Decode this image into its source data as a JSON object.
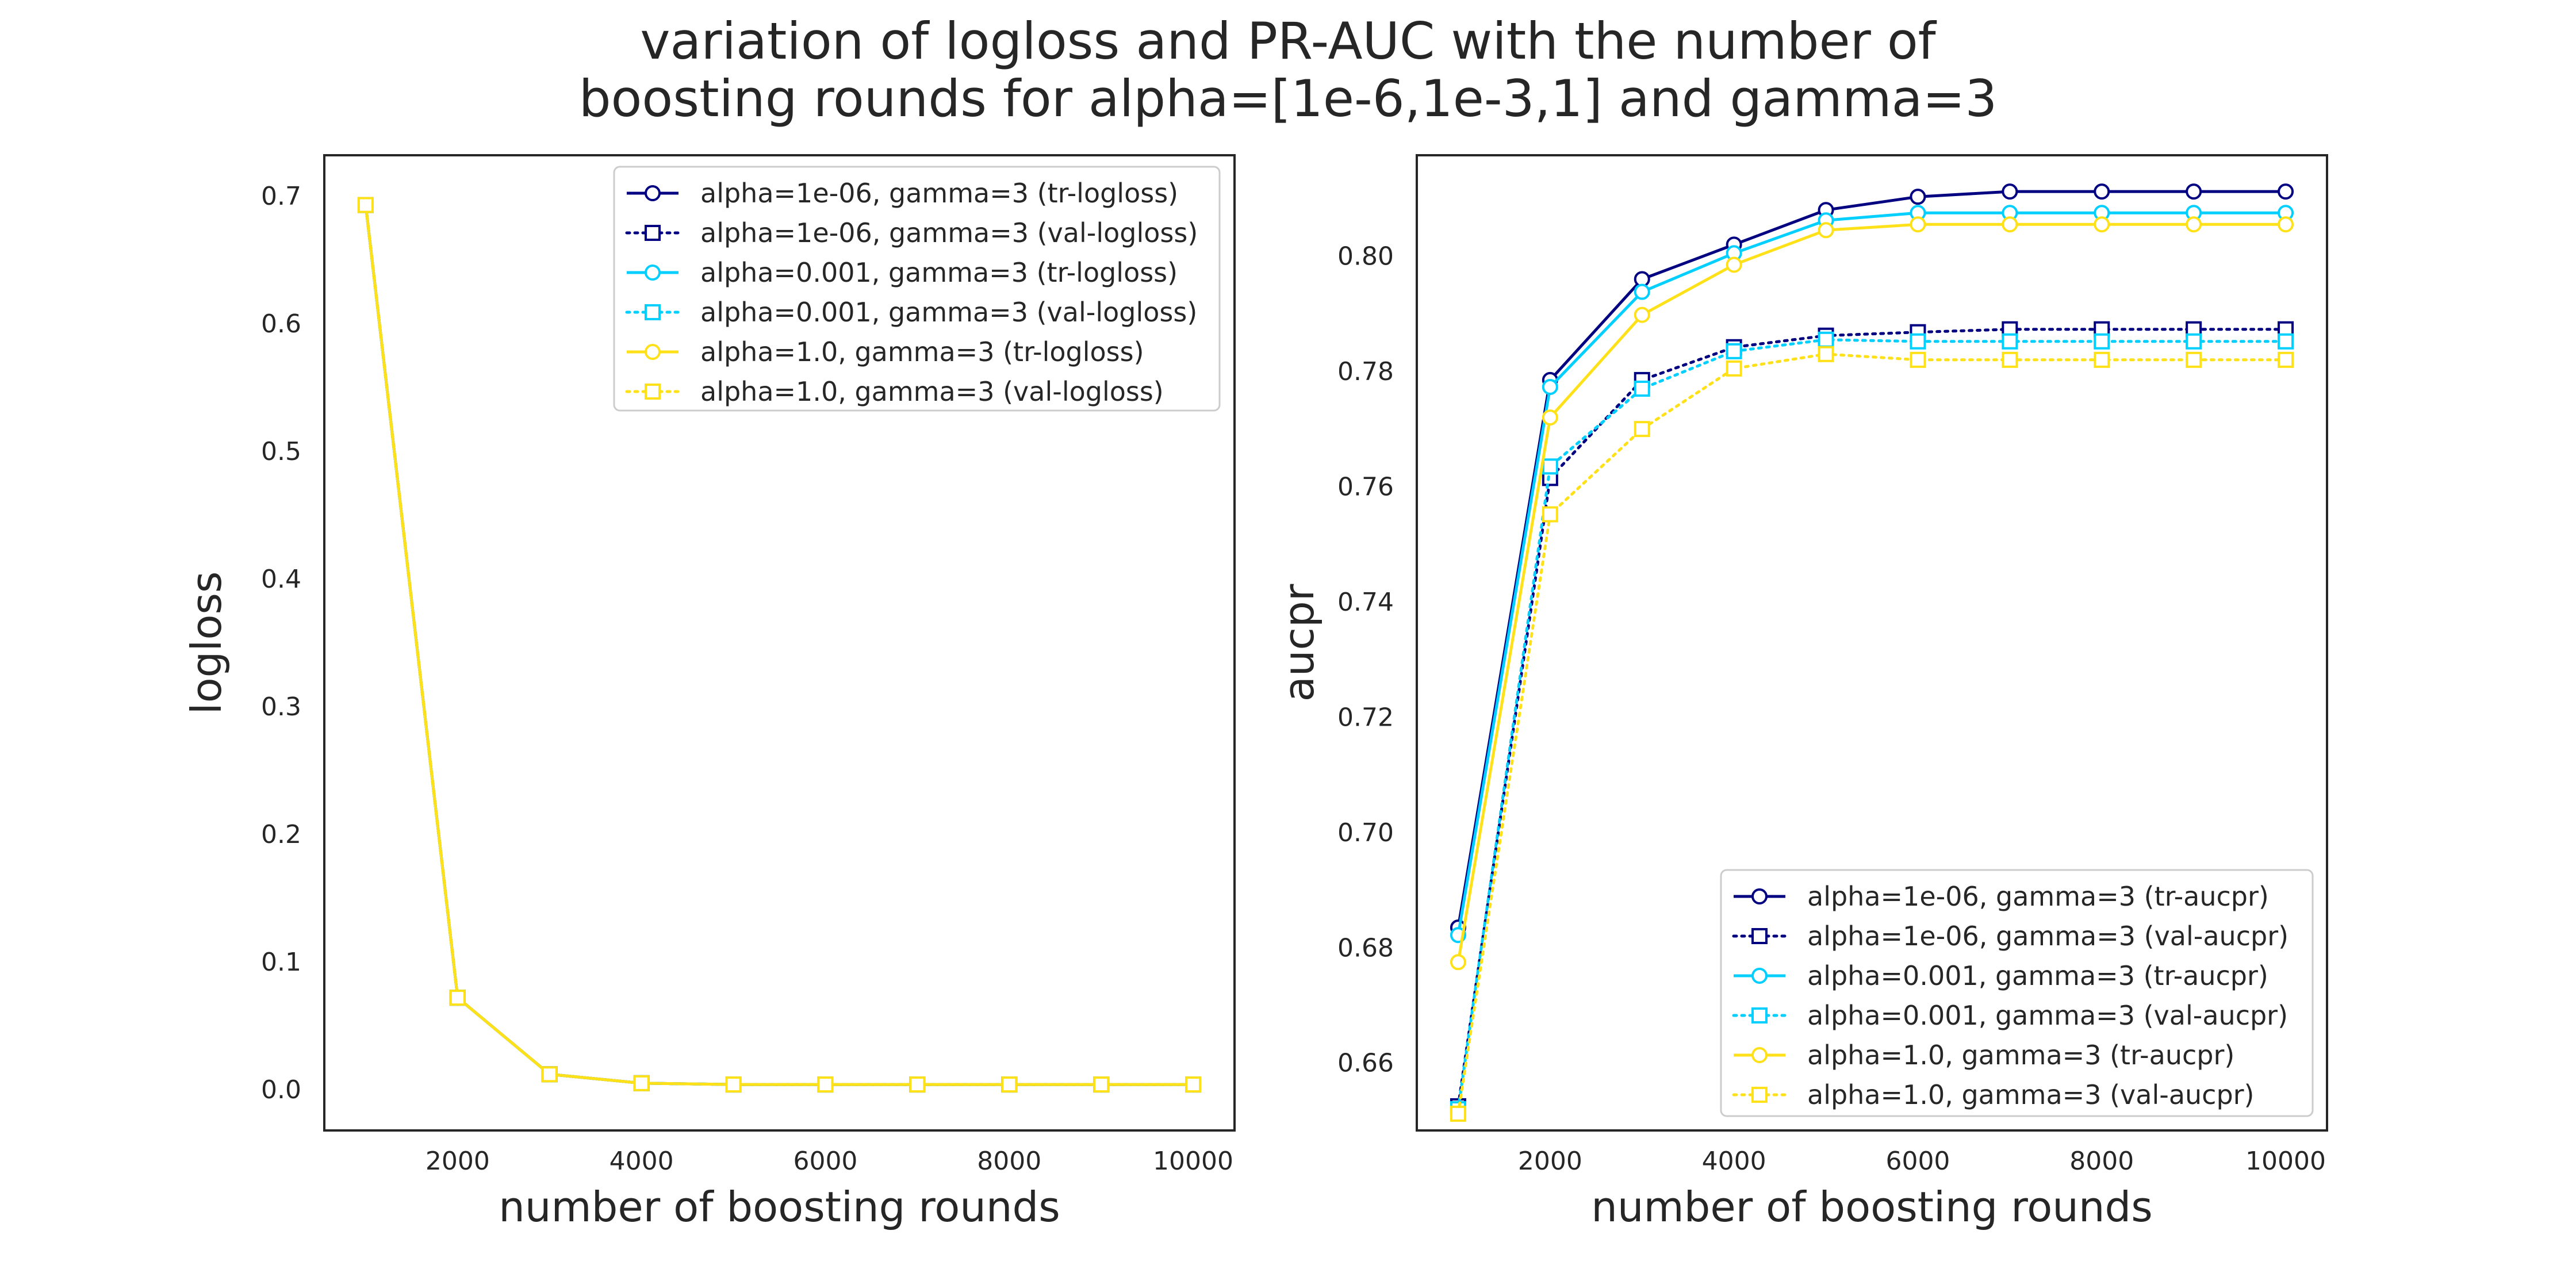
{
  "title_lines": [
    "variation of logloss and PR-AUC with the number of",
    "boosting rounds for alpha=[1e-6,1e-3,1]  and gamma=3"
  ],
  "chart_data": [
    {
      "type": "line",
      "xlabel": "number of boosting rounds",
      "ylabel": "logloss",
      "xlim": [
        550,
        10450
      ],
      "ylim": [
        -0.032,
        0.732
      ],
      "xticks": [
        2000,
        4000,
        6000,
        8000,
        10000
      ],
      "xtick_labels": [
        "2000",
        "4000",
        "6000",
        "8000",
        "10000"
      ],
      "yticks": [
        0.0,
        0.1,
        0.2,
        0.3,
        0.4,
        0.5,
        0.6,
        0.7
      ],
      "ytick_labels": [
        "0.0",
        "0.1",
        "0.2",
        "0.3",
        "0.4",
        "0.5",
        "0.6",
        "0.7"
      ],
      "grid": false,
      "legend_position": "upper-right",
      "x": [
        1000,
        2000,
        3000,
        4000,
        5000,
        6000,
        7000,
        8000,
        9000,
        10000
      ],
      "series": [
        {
          "name": "alpha=1e-06, gamma=3 (tr-logloss)",
          "color": "#000080",
          "linestyle": "solid",
          "marker": "circle",
          "values": [
            0.693,
            0.072,
            0.012,
            0.005,
            0.004,
            0.004,
            0.004,
            0.004,
            0.004,
            0.004
          ]
        },
        {
          "name": "alpha=1e-06, gamma=3 (val-logloss)",
          "color": "#000080",
          "linestyle": "dotted",
          "marker": "square",
          "values": [
            0.693,
            0.072,
            0.012,
            0.005,
            0.004,
            0.004,
            0.004,
            0.004,
            0.004,
            0.004
          ]
        },
        {
          "name": "alpha=0.001, gamma=3 (tr-logloss)",
          "color": "#00cfff",
          "linestyle": "solid",
          "marker": "circle",
          "values": [
            0.693,
            0.072,
            0.012,
            0.005,
            0.004,
            0.004,
            0.004,
            0.004,
            0.004,
            0.004
          ]
        },
        {
          "name": "alpha=0.001, gamma=3 (val-logloss)",
          "color": "#00cfff",
          "linestyle": "dotted",
          "marker": "square",
          "values": [
            0.693,
            0.072,
            0.012,
            0.005,
            0.004,
            0.004,
            0.004,
            0.004,
            0.004,
            0.004
          ]
        },
        {
          "name": "alpha=1.0, gamma=3 (tr-logloss)",
          "color": "#ffe119",
          "linestyle": "solid",
          "marker": "circle",
          "values": [
            0.693,
            0.072,
            0.012,
            0.005,
            0.004,
            0.004,
            0.004,
            0.004,
            0.004,
            0.004
          ]
        },
        {
          "name": "alpha=1.0, gamma=3 (val-logloss)",
          "color": "#ffe119",
          "linestyle": "dotted",
          "marker": "square",
          "values": [
            0.693,
            0.072,
            0.012,
            0.005,
            0.004,
            0.004,
            0.004,
            0.004,
            0.004,
            0.004
          ]
        }
      ]
    },
    {
      "type": "line",
      "xlabel": "number of boosting rounds",
      "ylabel": "aucpr",
      "xlim": [
        550,
        10450
      ],
      "ylim": [
        0.6483,
        0.8175
      ],
      "xticks": [
        2000,
        4000,
        6000,
        8000,
        10000
      ],
      "xtick_labels": [
        "2000",
        "4000",
        "6000",
        "8000",
        "10000"
      ],
      "yticks": [
        0.66,
        0.68,
        0.7,
        0.72,
        0.74,
        0.76,
        0.78,
        0.8
      ],
      "ytick_labels": [
        "0.66",
        "0.68",
        "0.70",
        "0.72",
        "0.74",
        "0.76",
        "0.78",
        "0.80"
      ],
      "grid": false,
      "legend_position": "lower-right",
      "x": [
        1000,
        2000,
        3000,
        4000,
        5000,
        6000,
        7000,
        8000,
        9000,
        10000
      ],
      "series": [
        {
          "name": "alpha=1e-06, gamma=3 (tr-aucpr)",
          "color": "#000080",
          "linestyle": "solid",
          "marker": "circle",
          "values": [
            0.6835,
            0.7785,
            0.796,
            0.802,
            0.808,
            0.8103,
            0.8112,
            0.8112,
            0.8112,
            0.8112
          ]
        },
        {
          "name": "alpha=1e-06, gamma=3 (val-aucpr)",
          "color": "#000080",
          "linestyle": "dotted",
          "marker": "square",
          "values": [
            0.6525,
            0.7615,
            0.7785,
            0.7842,
            0.7862,
            0.7868,
            0.7873,
            0.7873,
            0.7873,
            0.7873
          ]
        },
        {
          "name": "alpha=0.001, gamma=3 (tr-aucpr)",
          "color": "#00cfff",
          "linestyle": "solid",
          "marker": "circle",
          "values": [
            0.6822,
            0.7773,
            0.7938,
            0.8005,
            0.8062,
            0.8075,
            0.8075,
            0.8075,
            0.8075,
            0.8075
          ]
        },
        {
          "name": "alpha=0.001, gamma=3 (val-aucpr)",
          "color": "#00cfff",
          "linestyle": "dotted",
          "marker": "square",
          "values": [
            0.652,
            0.7635,
            0.777,
            0.7835,
            0.7855,
            0.7852,
            0.7852,
            0.7852,
            0.7852,
            0.7852
          ]
        },
        {
          "name": "alpha=1.0, gamma=3 (tr-aucpr)",
          "color": "#ffe119",
          "linestyle": "solid",
          "marker": "circle",
          "values": [
            0.6775,
            0.772,
            0.7898,
            0.7985,
            0.8045,
            0.8055,
            0.8055,
            0.8055,
            0.8055,
            0.8055
          ]
        },
        {
          "name": "alpha=1.0, gamma=3 (val-aucpr)",
          "color": "#ffe119",
          "linestyle": "dotted",
          "marker": "square",
          "values": [
            0.6512,
            0.7552,
            0.77,
            0.7805,
            0.783,
            0.782,
            0.782,
            0.782,
            0.782,
            0.782
          ]
        }
      ]
    }
  ]
}
